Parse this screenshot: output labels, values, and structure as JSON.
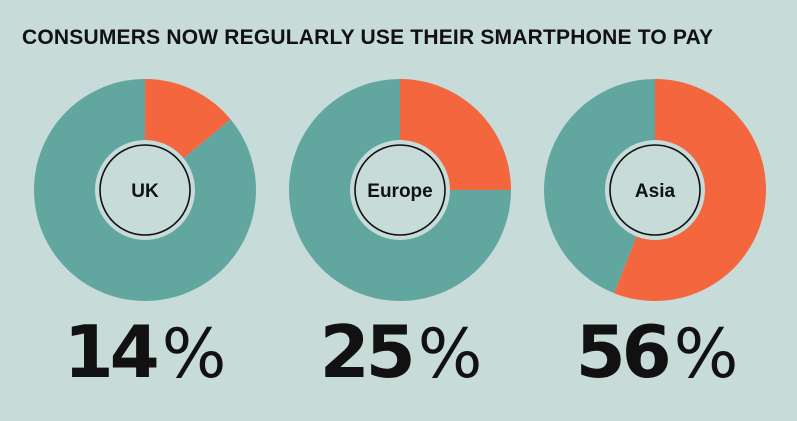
{
  "title": "CONSUMERS NOW REGULARLY USE THEIR SMARTPHONE TO PAY",
  "colors": {
    "background": "#c7dbd9",
    "teal": "#62a6a0",
    "orange": "#f4663d",
    "hub": "#c7dbd9",
    "ring": "#111111"
  },
  "chart_data": [
    {
      "type": "pie",
      "center_label": "UK",
      "value_text": "14",
      "value_symbol": "%",
      "values": [
        14,
        86
      ]
    },
    {
      "type": "pie",
      "center_label": "Europe",
      "value_text": "25",
      "value_symbol": "%",
      "values": [
        25,
        75
      ]
    },
    {
      "type": "pie",
      "center_label": "Asia",
      "value_text": "56",
      "value_symbol": "%",
      "values": [
        56,
        44
      ]
    }
  ]
}
